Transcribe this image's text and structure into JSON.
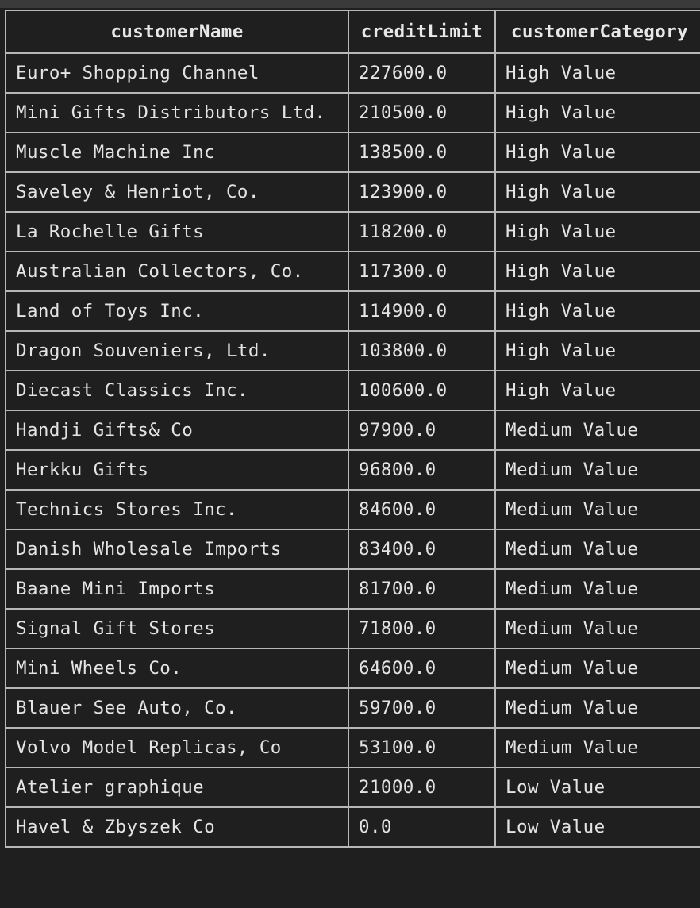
{
  "table": {
    "columns": [
      "customerName",
      "creditLimit",
      "customerCategory"
    ],
    "rows": [
      [
        "Euro+ Shopping Channel",
        "227600.0",
        "High Value"
      ],
      [
        "Mini Gifts Distributors Ltd.",
        "210500.0",
        "High Value"
      ],
      [
        "Muscle Machine Inc",
        "138500.0",
        "High Value"
      ],
      [
        "Saveley & Henriot, Co.",
        "123900.0",
        "High Value"
      ],
      [
        "La Rochelle Gifts",
        "118200.0",
        "High Value"
      ],
      [
        "Australian Collectors, Co.",
        "117300.0",
        "High Value"
      ],
      [
        "Land of Toys Inc.",
        "114900.0",
        "High Value"
      ],
      [
        "Dragon Souveniers, Ltd.",
        "103800.0",
        "High Value"
      ],
      [
        "Diecast Classics Inc.",
        "100600.0",
        "High Value"
      ],
      [
        "Handji Gifts& Co",
        "97900.0",
        "Medium Value"
      ],
      [
        "Herkku Gifts",
        "96800.0",
        "Medium Value"
      ],
      [
        "Technics Stores Inc.",
        "84600.0",
        "Medium Value"
      ],
      [
        "Danish Wholesale Imports",
        "83400.0",
        "Medium Value"
      ],
      [
        "Baane Mini Imports",
        "81700.0",
        "Medium Value"
      ],
      [
        "Signal Gift Stores",
        "71800.0",
        "Medium Value"
      ],
      [
        "Mini Wheels Co.",
        "64600.0",
        "Medium Value"
      ],
      [
        "Blauer See Auto, Co.",
        "59700.0",
        "Medium Value"
      ],
      [
        "Volvo Model Replicas, Co",
        "53100.0",
        "Medium Value"
      ],
      [
        "Atelier graphique",
        "21000.0",
        "Low Value"
      ],
      [
        "Havel & Zbyszek Co",
        "0.0",
        "Low Value"
      ]
    ]
  },
  "colors": {
    "background": "#1f1f1f",
    "border": "#b8b8b8",
    "text": "#e4e4e4"
  }
}
